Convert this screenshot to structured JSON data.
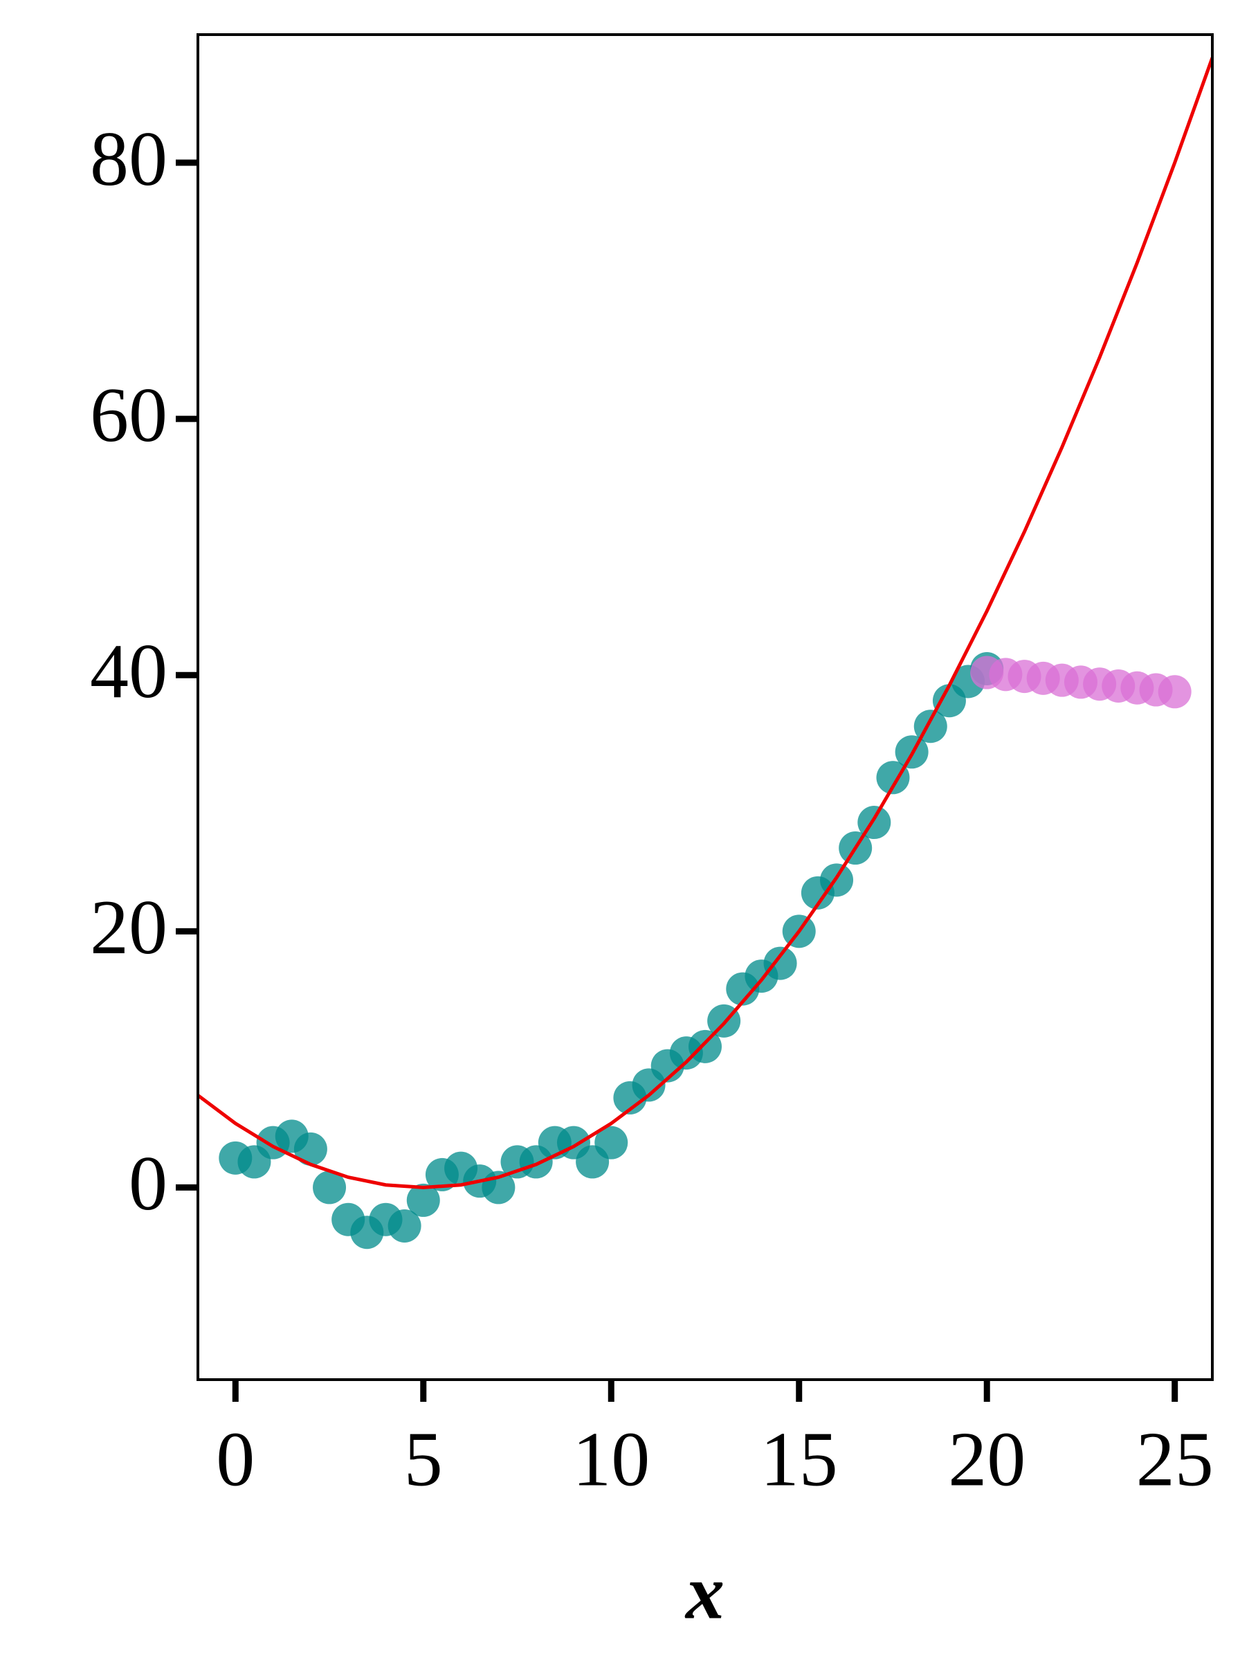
{
  "chart_data": {
    "type": "scatter",
    "x_label": "x",
    "xlim": [
      -1,
      26
    ],
    "ylim": [
      -15,
      90
    ],
    "xticks": [
      0,
      5,
      10,
      15,
      20,
      25
    ],
    "yticks": [
      0,
      20,
      40,
      60,
      80
    ],
    "grid": false,
    "series": [
      {
        "style": "scatter",
        "color": "#008b8b",
        "x": [
          0,
          0.5,
          1,
          1.5,
          2,
          2.5,
          3,
          3.5,
          4,
          4.5,
          5,
          5.5,
          6,
          6.5,
          7,
          7.5,
          8,
          8.5,
          9,
          9.5,
          10,
          10.5,
          11,
          11.5,
          12,
          12.5,
          13,
          13.5,
          14,
          14.5,
          15,
          15.5,
          16,
          16.5,
          17,
          17.5,
          18,
          18.5,
          19,
          19.5,
          20
        ],
        "values": [
          2.3,
          2,
          3.5,
          4,
          3,
          0,
          -2.5,
          -3.5,
          -2.5,
          -3,
          -1,
          1,
          1.5,
          0.5,
          0,
          2,
          2,
          3.5,
          3.5,
          2,
          3.5,
          7,
          8,
          9.5,
          10.5,
          11,
          13,
          15.5,
          16.5,
          17.5,
          20,
          23,
          24,
          26.5,
          28.5,
          32,
          34,
          36,
          38,
          39.5,
          40.5
        ]
      },
      {
        "style": "scatter",
        "color": "#da70d6",
        "x": [
          20,
          20.5,
          21,
          21.5,
          22,
          22.5,
          23,
          23.5,
          24,
          24.5,
          25
        ],
        "values": [
          40.2,
          40.05,
          39.9,
          39.75,
          39.6,
          39.45,
          39.3,
          39.15,
          39,
          38.85,
          38.7
        ]
      },
      {
        "style": "line",
        "color": "#ee0000",
        "x": [
          -1,
          0,
          1,
          2,
          3,
          4,
          5,
          6,
          7,
          8,
          9,
          10,
          11,
          12,
          13,
          14,
          15,
          16,
          17,
          18,
          19,
          20,
          21,
          22,
          23,
          24,
          25,
          26
        ],
        "values": [
          7.2,
          5,
          3.2,
          1.8,
          0.8,
          0.2,
          0,
          0.2,
          0.8,
          1.8,
          3.2,
          5,
          7.2,
          9.8,
          12.8,
          16.2,
          20,
          24.2,
          28.8,
          33.8,
          39.2,
          45,
          51.2,
          57.8,
          64.8,
          72.2,
          80,
          88.2
        ]
      }
    ]
  }
}
